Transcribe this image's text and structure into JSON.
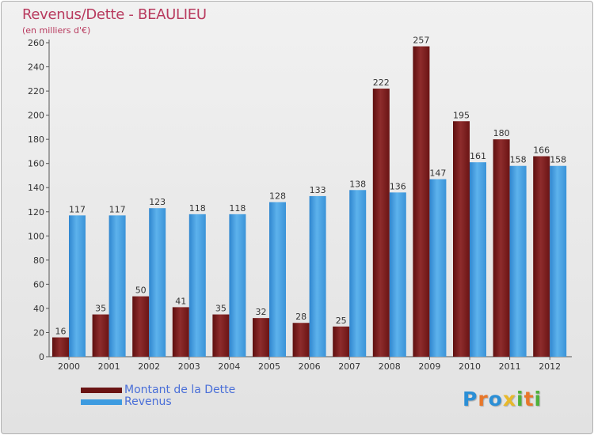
{
  "chart_data": {
    "type": "bar",
    "title": "Revenus/Dette - BEAULIEU",
    "subtitle": "(en milliers d'€)",
    "categories": [
      "2000",
      "2001",
      "2002",
      "2003",
      "2004",
      "2005",
      "2006",
      "2007",
      "2008",
      "2009",
      "2010",
      "2011",
      "2012"
    ],
    "series": [
      {
        "name": "Montant de la Dette",
        "color": "#7a1c1c",
        "values": [
          16,
          35,
          50,
          41,
          35,
          32,
          28,
          25,
          222,
          257,
          195,
          180,
          166
        ]
      },
      {
        "name": "Revenus",
        "color": "#3d9be0",
        "values": [
          117,
          117,
          123,
          118,
          118,
          128,
          133,
          138,
          136,
          147,
          161,
          158,
          158
        ]
      }
    ],
    "ylim": [
      0,
      260
    ],
    "yticks": [
      0,
      20,
      40,
      60,
      80,
      100,
      120,
      140,
      160,
      180,
      200,
      220,
      240,
      260
    ],
    "grid": false,
    "legend_position": "bottom-left"
  },
  "logo": {
    "letters": [
      "P",
      "r",
      "o",
      "x",
      "i",
      "t",
      "i"
    ],
    "colors": [
      "#2b8fd6",
      "#e8772a",
      "#2b8fd6",
      "#e8b92a",
      "#4fb13b",
      "#e8772a",
      "#4fb13b"
    ]
  }
}
